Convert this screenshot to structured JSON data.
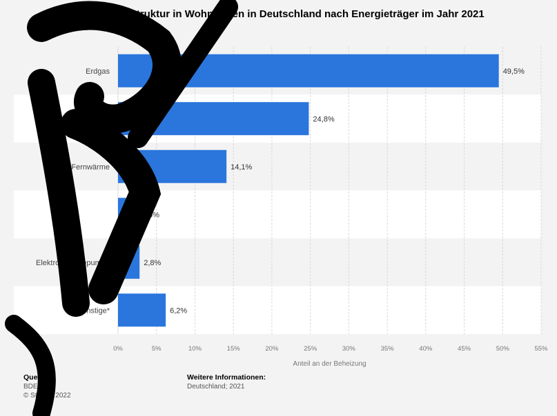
{
  "chart_data": {
    "type": "bar",
    "orientation": "horizontal",
    "title": "Beheizungsstruktur in Wohnungen in Deutschland nach Energieträger im Jahr 2021",
    "categories": [
      "Erdgas",
      "",
      "Fernwärme",
      "",
      "Elektro-Wärmepumpe",
      "Sonstige*"
    ],
    "values": [
      49.5,
      24.8,
      14.1,
      2.6,
      2.8,
      6.2
    ],
    "value_labels": [
      "49,5%",
      "24,8%",
      "14,1%",
      "2,6%",
      "2,8%",
      "6,2%"
    ],
    "xlabel": "Anteil an der Beheizung",
    "xlim": [
      0,
      55
    ],
    "xticks": [
      0,
      5,
      10,
      15,
      20,
      25,
      30,
      35,
      40,
      45,
      50,
      55
    ],
    "xtick_labels": [
      "0%",
      "5%",
      "10%",
      "15%",
      "20%",
      "25%",
      "30%",
      "35%",
      "40%",
      "45%",
      "50%",
      "55%"
    ],
    "bar_color": "#2a76dd",
    "grid": true,
    "legend": "none"
  },
  "footer": {
    "source_heading": "Quelle",
    "source_name": "BDEW",
    "copyright": "© Statista 2022",
    "info_heading": "Weitere Informationen:",
    "info_text": "Deutschland; 2021"
  },
  "colors": {
    "background": "#f3f3f3",
    "stripe": "#ffffff",
    "overlay": "#000000"
  }
}
